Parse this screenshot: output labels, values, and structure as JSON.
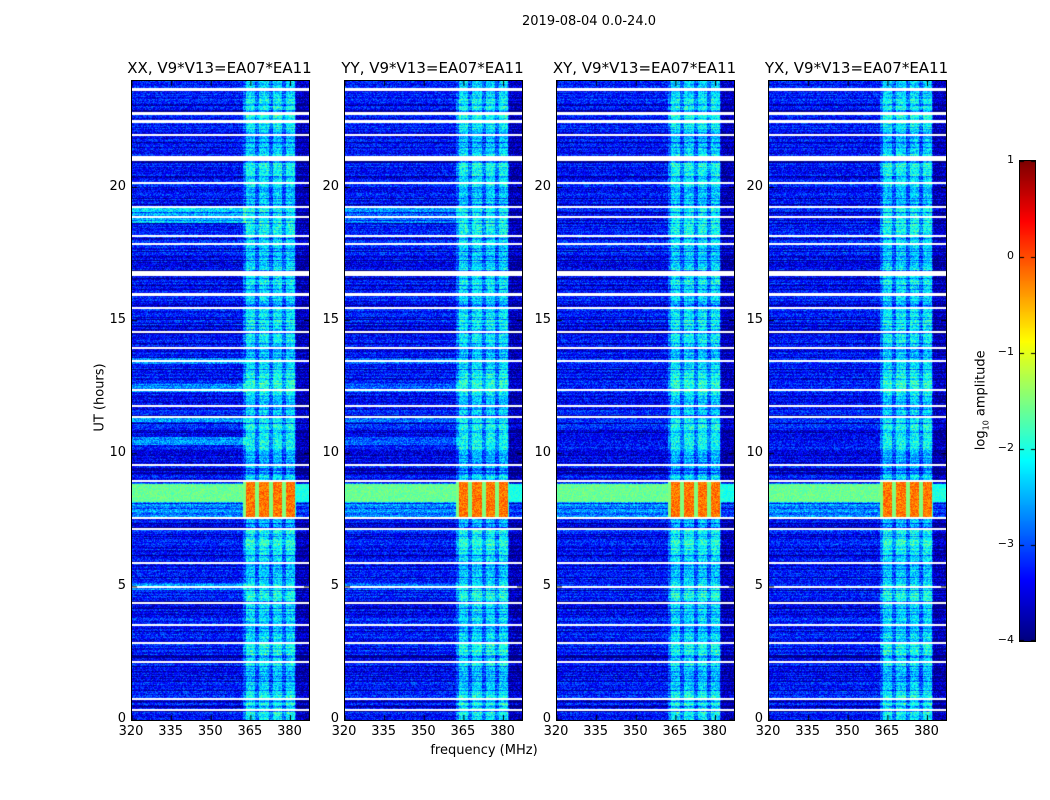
{
  "chart_data": {
    "type": "heatmap",
    "title": "2019-08-04 0.0-24.0",
    "xlabel": "frequency (MHz)",
    "ylabel": "UT (hours)",
    "xlim": [
      320,
      387
    ],
    "ylim": [
      0,
      24
    ],
    "xticks": [
      "320",
      "335",
      "350",
      "365",
      "380"
    ],
    "yticks": [
      "0",
      "5",
      "10",
      "15",
      "20"
    ],
    "panels": [
      {
        "title": "XX, V9*V13=EA07*EA11",
        "pol": "XX"
      },
      {
        "title": "YY, V9*V13=EA07*EA11",
        "pol": "YY"
      },
      {
        "title": "XY, V9*V13=EA07*EA11",
        "pol": "XY"
      },
      {
        "title": "YX, V9*V13=EA07*EA11",
        "pol": "YX"
      }
    ],
    "colorbar": {
      "label": "log10 amplitude",
      "label_main": "log",
      "label_sub": "10",
      "label_rest": " amplitude",
      "range": [
        -4,
        1
      ],
      "ticks": [
        "1",
        "0",
        "−1",
        "−2",
        "−3",
        "−4"
      ],
      "colormap": "jet"
    },
    "background_level_log10": -3.3,
    "flagged_hours": [
      23.7,
      22.8,
      22.5,
      22.0,
      21.1,
      20.2,
      19.3,
      18.9,
      18.2,
      17.9,
      16.8,
      16.0,
      15.5,
      14.6,
      14.0,
      13.5,
      12.4,
      11.8,
      11.4,
      9.6,
      9.0,
      7.6,
      7.2,
      5.9,
      5.0,
      4.4,
      3.6,
      2.9,
      2.2,
      0.8,
      0.4
    ],
    "rfi_subbands_mhz": [
      [
        363,
        366.5
      ],
      [
        368,
        371.5
      ],
      [
        373,
        376.5
      ],
      [
        378,
        381.5
      ]
    ],
    "strong_interval_hours": [
      7.6,
      9.0
    ]
  }
}
